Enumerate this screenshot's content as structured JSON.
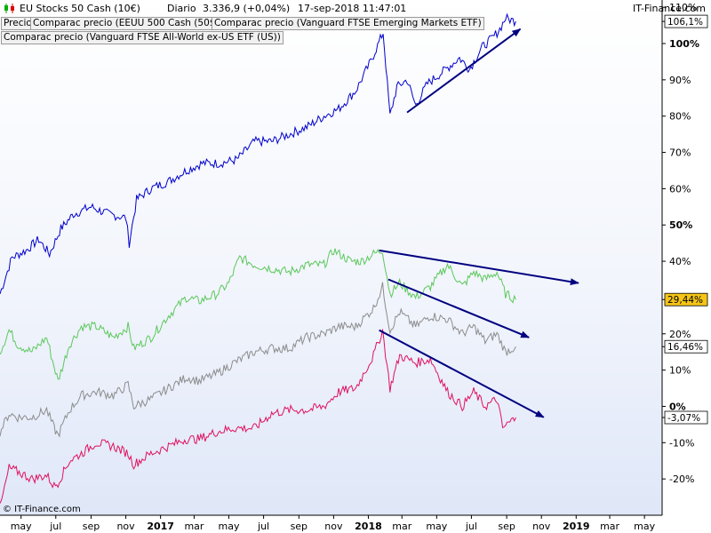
{
  "header": {
    "instrument": "EU Stocks 50 Cash (10€)",
    "period": "Diario",
    "quote": "3.336,9 (+0,04%)",
    "timestamp": "17-sep-2018 11:47:01",
    "brand": "IT-Finance.com"
  },
  "legend_tabs": [
    "Precio",
    "Comparac precio (EEUU 500 Cash (50$))",
    "Comparac precio (Vanguard FTSE Emerging Markets ETF)",
    "Comparac precio (Vanguard FTSE All-World ex-US ETF (US))"
  ],
  "credit": "© IT-Finance.com",
  "colors": {
    "blue": "#0000cc",
    "green": "#5cc85c",
    "gray": "#8c8c8c",
    "red": "#e0115f",
    "arrow": "#000080",
    "current_value_highlight": "#f5c518"
  },
  "chart_data": {
    "type": "line",
    "x_axis": {
      "range": [
        "2016-03-25",
        "2019-06-01"
      ],
      "ticks": [
        {
          "date": "2016-05-01",
          "label": "may",
          "bold": false
        },
        {
          "date": "2016-07-01",
          "label": "jul",
          "bold": false
        },
        {
          "date": "2016-09-01",
          "label": "sep",
          "bold": false
        },
        {
          "date": "2016-11-01",
          "label": "nov",
          "bold": false
        },
        {
          "date": "2017-01-01",
          "label": "2017",
          "bold": true
        },
        {
          "date": "2017-03-01",
          "label": "mar",
          "bold": false
        },
        {
          "date": "2017-05-01",
          "label": "may",
          "bold": false
        },
        {
          "date": "2017-07-01",
          "label": "jul",
          "bold": false
        },
        {
          "date": "2017-09-01",
          "label": "sep",
          "bold": false
        },
        {
          "date": "2017-11-01",
          "label": "nov",
          "bold": false
        },
        {
          "date": "2018-01-01",
          "label": "2018",
          "bold": true
        },
        {
          "date": "2018-03-01",
          "label": "mar",
          "bold": false
        },
        {
          "date": "2018-05-01",
          "label": "may",
          "bold": false
        },
        {
          "date": "2018-07-01",
          "label": "jul",
          "bold": false
        },
        {
          "date": "2018-09-01",
          "label": "sep",
          "bold": false
        },
        {
          "date": "2018-11-01",
          "label": "nov",
          "bold": false
        },
        {
          "date": "2019-01-01",
          "label": "2019",
          "bold": true
        },
        {
          "date": "2019-03-01",
          "label": "mar",
          "bold": false
        },
        {
          "date": "2019-05-01",
          "label": "may",
          "bold": false
        }
      ]
    },
    "y_axis": {
      "unit": "%",
      "range": [
        -30,
        112
      ],
      "ticks": [
        {
          "value": 110,
          "label": "110%",
          "bold": false
        },
        {
          "value": 100,
          "label": "100%",
          "bold": true
        },
        {
          "value": 90,
          "label": "90%",
          "bold": false
        },
        {
          "value": 80,
          "label": "80%",
          "bold": false
        },
        {
          "value": 70,
          "label": "70%",
          "bold": false
        },
        {
          "value": 60,
          "label": "60%",
          "bold": false
        },
        {
          "value": 50,
          "label": "50%",
          "bold": true
        },
        {
          "value": 40,
          "label": "40%",
          "bold": false
        },
        {
          "value": 20,
          "label": "20%",
          "bold": false
        },
        {
          "value": 10,
          "label": "10%",
          "bold": false
        },
        {
          "value": 0,
          "label": "0%",
          "bold": true
        },
        {
          "value": -10,
          "label": "-10%",
          "bold": false
        },
        {
          "value": -20,
          "label": "-20%",
          "bold": false
        }
      ]
    },
    "grid": false,
    "series": [
      {
        "color": "#0000cc",
        "last_value_label": "106,1%",
        "last_value": 106.1,
        "points": [
          [
            "2016-03-25",
            31
          ],
          [
            "2016-04-15",
            41
          ],
          [
            "2016-05-10",
            43
          ],
          [
            "2016-06-01",
            46
          ],
          [
            "2016-06-20",
            42
          ],
          [
            "2016-07-10",
            49
          ],
          [
            "2016-08-01",
            53
          ],
          [
            "2016-09-01",
            55
          ],
          [
            "2016-10-01",
            53
          ],
          [
            "2016-11-01",
            52
          ],
          [
            "2016-11-07",
            45
          ],
          [
            "2016-11-20",
            57
          ],
          [
            "2016-12-15",
            60
          ],
          [
            "2017-01-15",
            62
          ],
          [
            "2017-02-15",
            65
          ],
          [
            "2017-03-15",
            67
          ],
          [
            "2017-04-15",
            67
          ],
          [
            "2017-05-15",
            68
          ],
          [
            "2017-06-15",
            73
          ],
          [
            "2017-07-15",
            73
          ],
          [
            "2017-08-15",
            75
          ],
          [
            "2017-09-15",
            77
          ],
          [
            "2017-10-15",
            80
          ],
          [
            "2017-11-10",
            82
          ],
          [
            "2017-12-10",
            87
          ],
          [
            "2018-01-05",
            95
          ],
          [
            "2018-01-27",
            103
          ],
          [
            "2018-02-08",
            80
          ],
          [
            "2018-02-20",
            88
          ],
          [
            "2018-03-10",
            90
          ],
          [
            "2018-03-25",
            83
          ],
          [
            "2018-04-15",
            89
          ],
          [
            "2018-05-10",
            92
          ],
          [
            "2018-06-10",
            96
          ],
          [
            "2018-06-28",
            93
          ],
          [
            "2018-07-20",
            99
          ],
          [
            "2018-08-10",
            102
          ],
          [
            "2018-08-20",
            104
          ],
          [
            "2018-08-30",
            107
          ],
          [
            "2018-09-17",
            106.1
          ]
        ]
      },
      {
        "color": "#5cc85c",
        "last_value_label": "29,44%",
        "last_value": 29.44,
        "highlight": true,
        "points": [
          [
            "2016-03-25",
            15
          ],
          [
            "2016-04-10",
            21
          ],
          [
            "2016-04-25",
            17
          ],
          [
            "2016-05-20",
            15
          ],
          [
            "2016-06-15",
            19
          ],
          [
            "2016-06-28",
            11
          ],
          [
            "2016-07-05",
            7
          ],
          [
            "2016-07-25",
            17
          ],
          [
            "2016-08-15",
            22
          ],
          [
            "2016-09-10",
            22
          ],
          [
            "2016-10-10",
            19
          ],
          [
            "2016-11-05",
            22
          ],
          [
            "2016-11-15",
            16
          ],
          [
            "2016-12-15",
            19
          ],
          [
            "2017-01-15",
            25
          ],
          [
            "2017-02-15",
            30
          ],
          [
            "2017-03-10",
            29
          ],
          [
            "2017-04-10",
            31
          ],
          [
            "2017-05-01",
            34
          ],
          [
            "2017-05-20",
            41
          ],
          [
            "2017-06-15",
            39
          ],
          [
            "2017-07-15",
            38
          ],
          [
            "2017-08-15",
            37
          ],
          [
            "2017-09-15",
            39
          ],
          [
            "2017-10-15",
            39
          ],
          [
            "2017-11-01",
            43
          ],
          [
            "2017-12-01",
            40
          ],
          [
            "2017-12-20",
            40
          ],
          [
            "2018-01-10",
            42
          ],
          [
            "2018-01-26",
            43
          ],
          [
            "2018-02-08",
            31
          ],
          [
            "2018-02-25",
            34
          ],
          [
            "2018-03-25",
            30
          ],
          [
            "2018-04-20",
            33
          ],
          [
            "2018-05-20",
            39
          ],
          [
            "2018-06-15",
            33
          ],
          [
            "2018-07-05",
            37
          ],
          [
            "2018-07-25",
            35
          ],
          [
            "2018-08-15",
            37
          ],
          [
            "2018-08-30",
            31
          ],
          [
            "2018-09-17",
            29.44
          ]
        ]
      },
      {
        "color": "#8c8c8c",
        "last_value_label": "16,46%",
        "last_value": 16.46,
        "points": [
          [
            "2016-03-25",
            -7
          ],
          [
            "2016-04-10",
            -2
          ],
          [
            "2016-04-25",
            -3
          ],
          [
            "2016-05-20",
            -3
          ],
          [
            "2016-06-15",
            -1
          ],
          [
            "2016-06-28",
            -6
          ],
          [
            "2016-07-05",
            -8
          ],
          [
            "2016-07-25",
            -1
          ],
          [
            "2016-08-15",
            3
          ],
          [
            "2016-09-10",
            4
          ],
          [
            "2016-10-10",
            3
          ],
          [
            "2016-11-05",
            6
          ],
          [
            "2016-11-15",
            0
          ],
          [
            "2016-12-15",
            2
          ],
          [
            "2017-01-15",
            5
          ],
          [
            "2017-02-15",
            8
          ],
          [
            "2017-03-10",
            7
          ],
          [
            "2017-04-10",
            9
          ],
          [
            "2017-05-10",
            12
          ],
          [
            "2017-06-15",
            15
          ],
          [
            "2017-07-15",
            16
          ],
          [
            "2017-08-15",
            16
          ],
          [
            "2017-09-15",
            19
          ],
          [
            "2017-10-15",
            20
          ],
          [
            "2017-11-10",
            22
          ],
          [
            "2017-12-10",
            22
          ],
          [
            "2018-01-10",
            27
          ],
          [
            "2018-01-26",
            33
          ],
          [
            "2018-02-08",
            21
          ],
          [
            "2018-02-25",
            26
          ],
          [
            "2018-03-25",
            22
          ],
          [
            "2018-04-20",
            25
          ],
          [
            "2018-05-20",
            24
          ],
          [
            "2018-06-15",
            20
          ],
          [
            "2018-07-05",
            22
          ],
          [
            "2018-07-25",
            18
          ],
          [
            "2018-08-15",
            20
          ],
          [
            "2018-08-30",
            15
          ],
          [
            "2018-09-17",
            16.46
          ]
        ]
      },
      {
        "color": "#e0115f",
        "last_value_label": "-3,07%",
        "last_value": -3.07,
        "points": [
          [
            "2016-03-25",
            -28
          ],
          [
            "2016-04-10",
            -17
          ],
          [
            "2016-04-25",
            -18
          ],
          [
            "2016-05-20",
            -20
          ],
          [
            "2016-06-15",
            -19
          ],
          [
            "2016-06-28",
            -22
          ],
          [
            "2016-07-05",
            -21
          ],
          [
            "2016-07-25",
            -15
          ],
          [
            "2016-08-15",
            -13
          ],
          [
            "2016-09-10",
            -10
          ],
          [
            "2016-10-10",
            -11
          ],
          [
            "2016-11-05",
            -13
          ],
          [
            "2016-11-15",
            -16
          ],
          [
            "2016-12-15",
            -13
          ],
          [
            "2017-01-15",
            -11
          ],
          [
            "2017-02-15",
            -9
          ],
          [
            "2017-03-10",
            -9
          ],
          [
            "2017-04-10",
            -7
          ],
          [
            "2017-05-10",
            -6
          ],
          [
            "2017-06-15",
            -6
          ],
          [
            "2017-07-15",
            -2
          ],
          [
            "2017-08-15",
            -1
          ],
          [
            "2017-09-15",
            -1
          ],
          [
            "2017-10-15",
            0
          ],
          [
            "2017-11-10",
            4
          ],
          [
            "2017-12-10",
            5
          ],
          [
            "2018-01-10",
            14
          ],
          [
            "2018-01-26",
            21
          ],
          [
            "2018-02-08",
            5
          ],
          [
            "2018-02-25",
            14
          ],
          [
            "2018-03-25",
            12
          ],
          [
            "2018-04-20",
            13
          ],
          [
            "2018-05-20",
            4
          ],
          [
            "2018-06-15",
            0
          ],
          [
            "2018-07-05",
            4
          ],
          [
            "2018-07-25",
            0
          ],
          [
            "2018-08-15",
            2
          ],
          [
            "2018-08-25",
            -6
          ],
          [
            "2018-09-17",
            -3.07
          ]
        ]
      }
    ],
    "trend_arrows": [
      {
        "from": [
          "2018-03-10",
          81
        ],
        "to": [
          "2018-09-25",
          104
        ]
      },
      {
        "from": [
          "2018-01-20",
          43
        ],
        "to": [
          "2019-01-05",
          34
        ]
      },
      {
        "from": [
          "2018-02-05",
          35
        ],
        "to": [
          "2018-10-10",
          19
        ]
      },
      {
        "from": [
          "2018-01-20",
          21
        ],
        "to": [
          "2018-11-05",
          -3
        ]
      }
    ]
  }
}
